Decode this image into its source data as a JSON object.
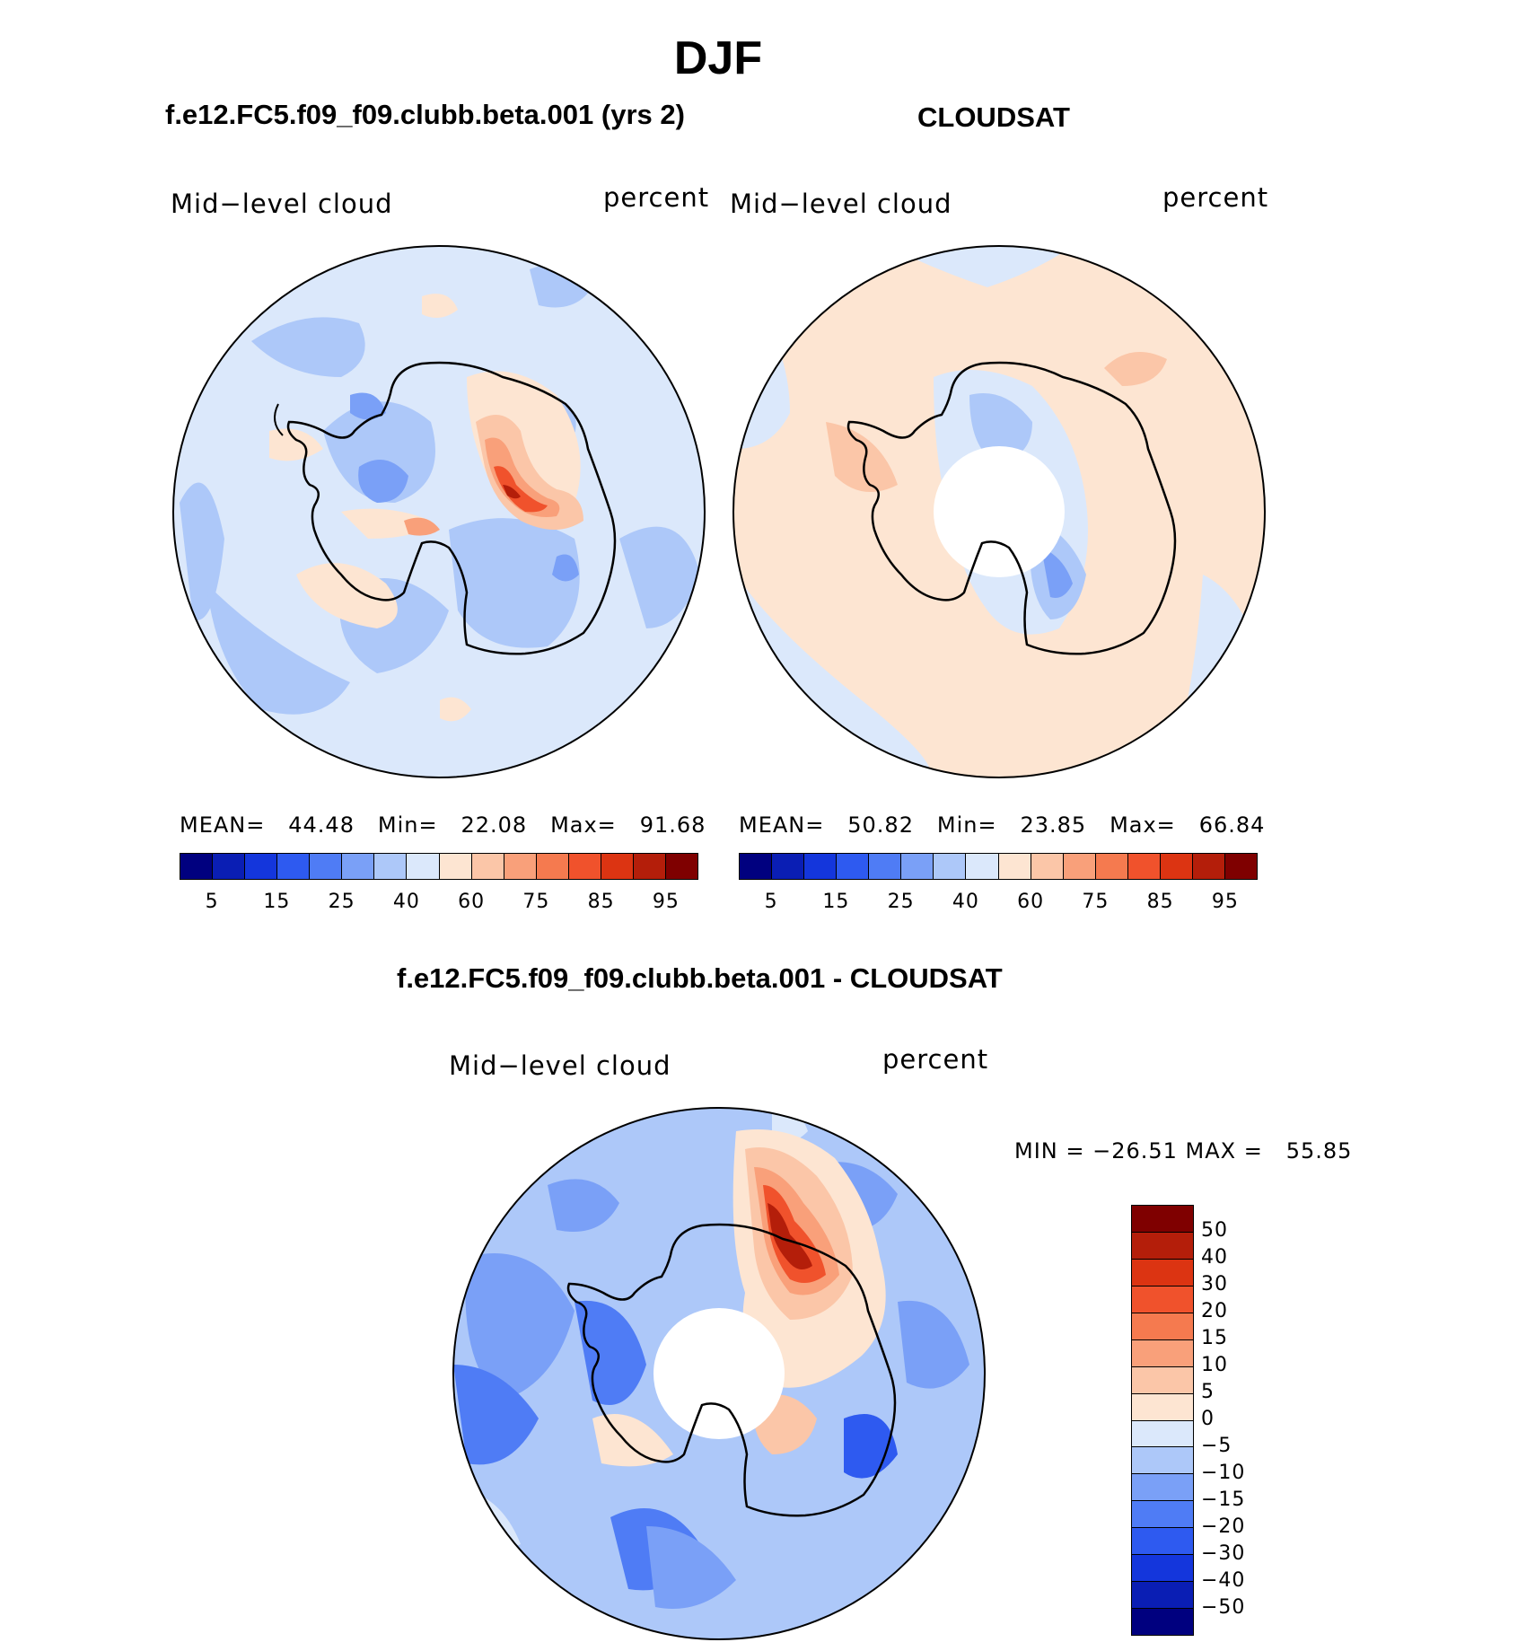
{
  "title": "DJF",
  "panel_left": {
    "case_title": "f.e12.FC5.f09_f09.clubb.beta.001 (yrs 2)",
    "variable": "Mid−level cloud",
    "units": "percent",
    "stats": {
      "mean_label": "MEAN=",
      "mean": "44.48",
      "min_label": "Min=",
      "min": "22.08",
      "max_label": "Max=",
      "max": "91.68"
    }
  },
  "panel_right": {
    "case_title": "CLOUDSAT",
    "variable": "Mid−level cloud",
    "units": "percent",
    "stats": {
      "mean_label": "MEAN=",
      "mean": "50.82",
      "min_label": "Min=",
      "min": "23.85",
      "max_label": "Max=",
      "max": "66.84"
    }
  },
  "panel_diff": {
    "case_title": "f.e12.FC5.f09_f09.clubb.beta.001 - CLOUDSAT",
    "variable": "Mid−level cloud",
    "units": "percent",
    "minmax": "MIN = −26.51 MAX =   55.85"
  },
  "colorbar_top": {
    "colors": [
      "#00007f",
      "#0a1eb4",
      "#1436dc",
      "#2e5af0",
      "#4f7cf5",
      "#7aa0f7",
      "#adc8f9",
      "#dbe8fb",
      "#fde5d2",
      "#fbc6a8",
      "#f9a07a",
      "#f57a4f",
      "#f0522c",
      "#dc3412",
      "#b41e0a",
      "#7f0000"
    ],
    "labels": [
      "5",
      "15",
      "25",
      "40",
      "60",
      "75",
      "85",
      "95"
    ]
  },
  "colorbar_diff": {
    "colors": [
      "#7f0000",
      "#b41e0a",
      "#dc3412",
      "#f0522c",
      "#f57a4f",
      "#f9a07a",
      "#fbc6a8",
      "#fde5d2",
      "#dbe8fb",
      "#adc8f9",
      "#7aa0f7",
      "#4f7cf5",
      "#2e5af0",
      "#1436dc",
      "#0a1eb4",
      "#00007f"
    ],
    "labels": [
      "50",
      "40",
      "30",
      "20",
      "15",
      "10",
      "5",
      "0",
      "−5",
      "−10",
      "−15",
      "−20",
      "−30",
      "−40",
      "−50"
    ]
  },
  "map_colors": {
    "ocean_light": "#dbe8fb",
    "mid_blue": "#adc8f9",
    "blue": "#7aa0f7",
    "dark_blue": "#4f7cf5",
    "peach": "#fde5d2",
    "salmon": "#fbc6a8",
    "orange": "#f9a07a",
    "red": "#f0522c",
    "dark_red": "#b41e0a"
  }
}
